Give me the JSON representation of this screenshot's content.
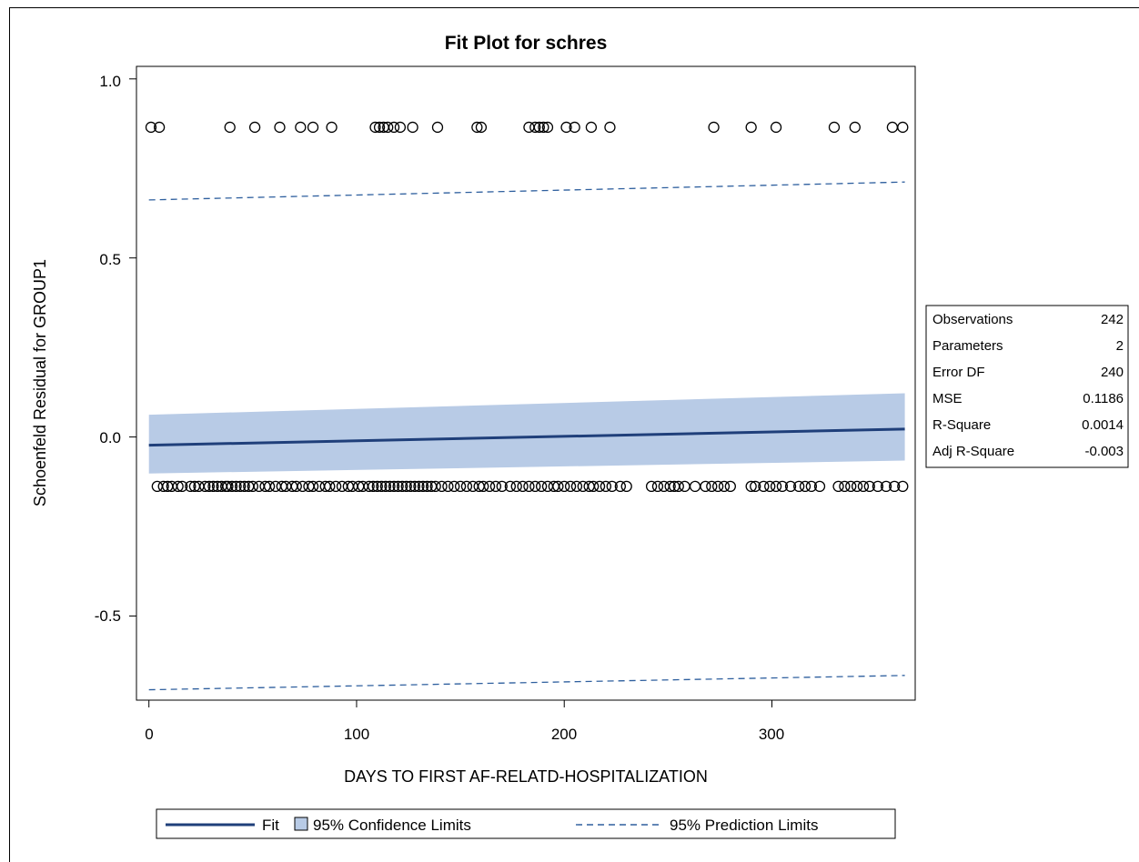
{
  "chart_data": {
    "type": "scatter",
    "title": "Fit Plot for schres",
    "xlabel": "DAYS TO FIRST AF-RELATD-HOSPITALIZATION",
    "ylabel": "Schoenfeld Residual for GROUP1",
    "xlim": [
      -6,
      369
    ],
    "ylim": [
      -0.735,
      1.035
    ],
    "x_ticks": [
      "0",
      "100",
      "200",
      "300"
    ],
    "y_ticks": [
      "-0.5",
      "0.0",
      "0.5",
      "1.0"
    ],
    "grid": false,
    "legend_position": "bottom",
    "fit_line": {
      "x": [
        0,
        364
      ],
      "y": [
        -0.023,
        0.022
      ]
    },
    "confidence_band": {
      "x": [
        0,
        364
      ],
      "lower": [
        -0.102,
        -0.066
      ],
      "upper": [
        0.062,
        0.122
      ]
    },
    "prediction_limits": {
      "x": [
        0,
        364
      ],
      "lower": [
        -0.706,
        -0.666
      ],
      "upper": [
        0.662,
        0.712
      ]
    },
    "points_high": {
      "y": 0.865,
      "x": [
        1,
        5,
        39,
        51,
        63,
        73,
        79,
        88,
        109,
        111,
        113,
        115,
        118,
        121,
        127,
        139,
        158,
        160,
        183,
        186,
        188,
        190,
        192,
        201,
        205,
        213,
        222,
        272,
        290,
        302,
        330,
        340,
        358,
        363
      ]
    },
    "points_low": {
      "y": -0.138,
      "x": [
        4,
        7,
        9,
        11,
        14,
        16,
        20,
        22,
        24,
        27,
        29,
        31,
        33,
        35,
        37,
        38,
        40,
        42,
        44,
        46,
        48,
        50,
        53,
        56,
        58,
        61,
        64,
        66,
        69,
        71,
        74,
        77,
        79,
        82,
        85,
        87,
        90,
        93,
        96,
        98,
        101,
        103,
        106,
        108,
        110,
        112,
        114,
        116,
        118,
        120,
        122,
        124,
        126,
        128,
        130,
        132,
        134,
        136,
        138,
        141,
        144,
        147,
        150,
        153,
        156,
        159,
        161,
        164,
        167,
        170,
        174,
        177,
        180,
        183,
        186,
        189,
        192,
        195,
        197,
        200,
        203,
        206,
        209,
        212,
        214,
        217,
        220,
        223,
        227,
        230,
        242,
        245,
        248,
        251,
        253,
        255,
        258,
        263,
        268,
        271,
        274,
        277,
        280,
        290,
        292,
        296,
        299,
        302,
        305,
        309,
        313,
        316,
        319,
        323,
        332,
        335,
        338,
        341,
        344,
        347,
        351,
        355,
        359,
        363
      ]
    },
    "legend": [
      {
        "label": "Fit",
        "color": "#1f3f7a",
        "kind": "line"
      },
      {
        "label": "95% Confidence Limits",
        "color": "#b8cbe6",
        "kind": "band"
      },
      {
        "label": "95% Prediction Limits",
        "color": "#2e5f9e",
        "kind": "dashed"
      }
    ],
    "fit_statistics": [
      {
        "label": "Observations",
        "value": "242"
      },
      {
        "label": "Parameters",
        "value": "2"
      },
      {
        "label": "Error DF",
        "value": "240"
      },
      {
        "label": "MSE",
        "value": "0.1186"
      },
      {
        "label": "R-Square",
        "value": "0.0014"
      },
      {
        "label": "Adj R-Square",
        "value": "-0.003"
      }
    ],
    "colors": {
      "fit": "#1f3f7a",
      "band": "#b8cbe6",
      "prediction": "#2e5f9e",
      "marker": "#000000"
    }
  }
}
